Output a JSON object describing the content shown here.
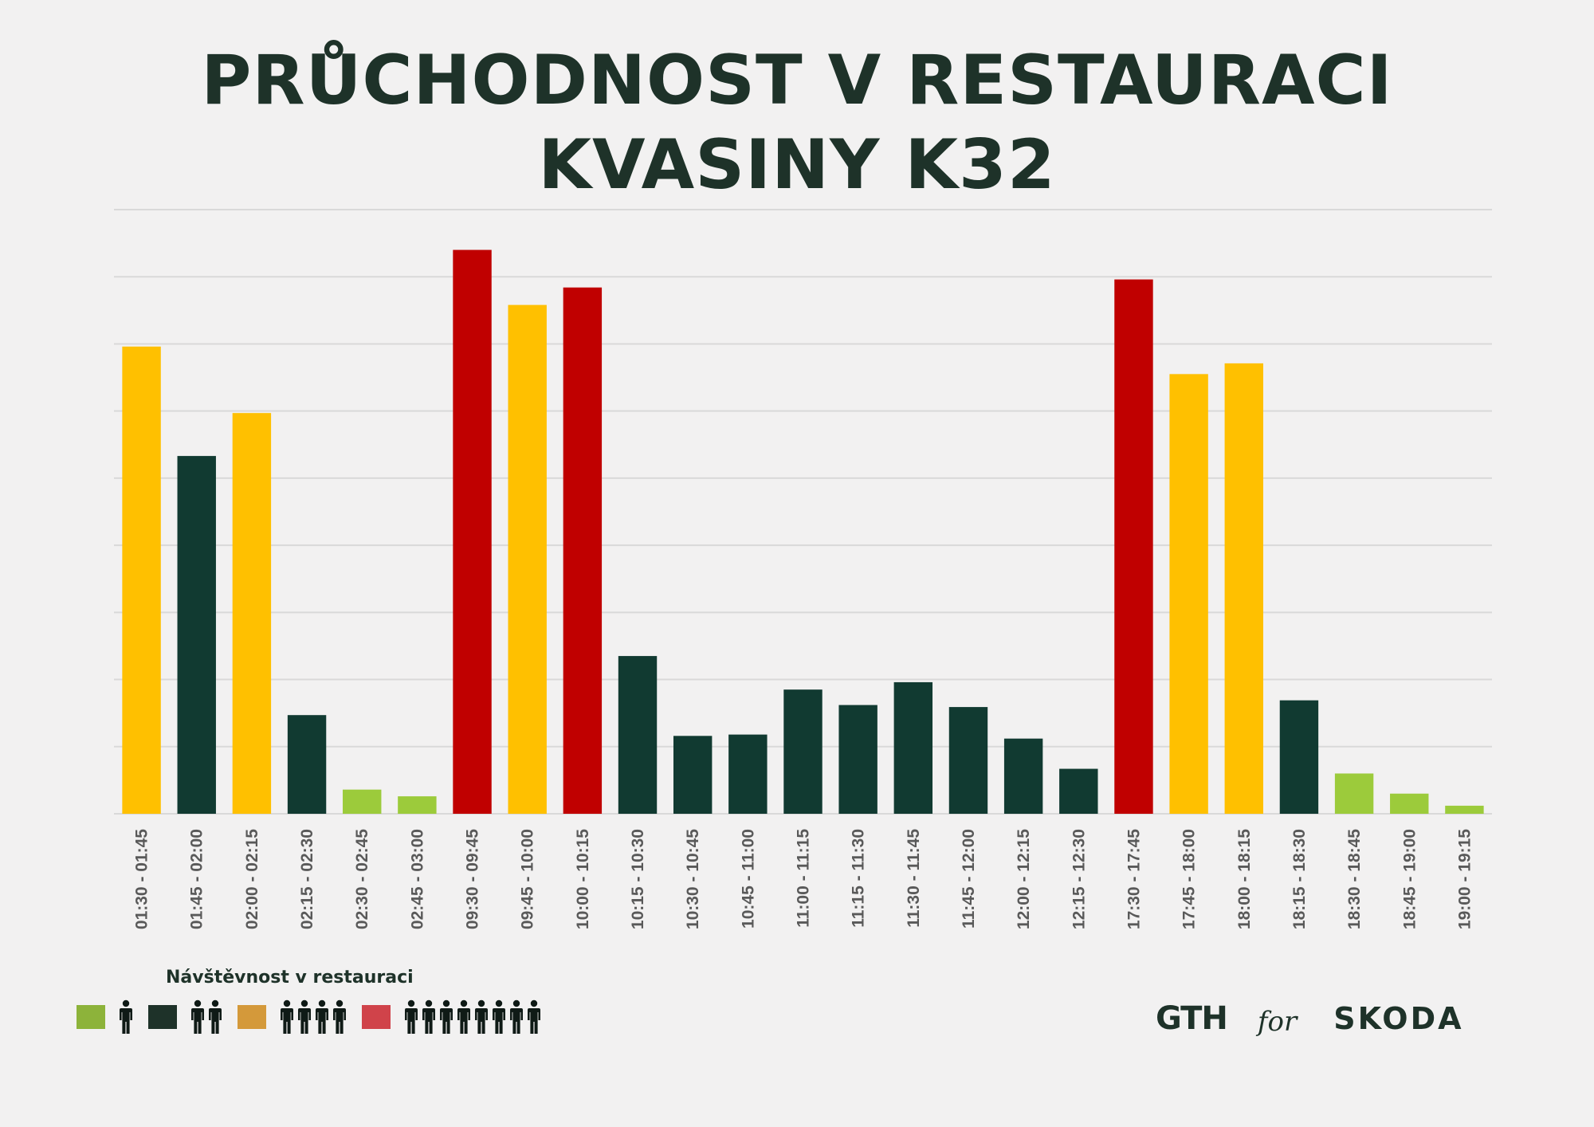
{
  "title_line1": "PRŮCHODNOST V RESTAURACI",
  "title_line2": "KVASINY K32",
  "legend": {
    "title": "Návštěvnost v restauraci",
    "items": [
      {
        "color": "#8db33a",
        "persons": 1
      },
      {
        "color": "#1e3229",
        "persons": 2
      },
      {
        "color": "#d4993a",
        "persons": 4
      },
      {
        "color": "#d0434a",
        "persons": 8
      }
    ]
  },
  "logos": {
    "gth": "GTH",
    "for": "for",
    "skoda": "SKODA"
  },
  "chart_data": {
    "type": "bar",
    "title": "PRŮCHODNOST V RESTAURACI KVASINY K32",
    "xlabel": "",
    "ylabel": "",
    "ylim": [
      0,
      9
    ],
    "grid": true,
    "legend_placement": "bottom-left",
    "categories": [
      "01:30 - 01:45",
      "01:45 - 02:00",
      "02:00 - 02:15",
      "02:15 - 02:30",
      "02:30 - 02:45",
      "02:45 - 03:00",
      "09:30 - 09:45",
      "09:45 - 10:00",
      "10:00 - 10:15",
      "10:15 - 10:30",
      "10:30 - 10:45",
      "10:45 - 11:00",
      "11:00 - 11:15",
      "11:15 - 11:30",
      "11:30 - 11:45",
      "11:45 - 12:00",
      "12:00 - 12:15",
      "12:15 - 12:30",
      "17:30 - 17:45",
      "17:45 - 18:00",
      "18:00 - 18:15",
      "18:15 - 18:30",
      "18:30 - 18:45",
      "18:45 - 19:00",
      "19:00 - 19:15"
    ],
    "values": [
      6.96,
      5.33,
      5.97,
      1.47,
      0.36,
      0.26,
      8.4,
      7.58,
      7.84,
      2.35,
      1.16,
      1.18,
      1.85,
      1.62,
      1.96,
      1.59,
      1.12,
      0.67,
      7.96,
      6.55,
      6.71,
      1.69,
      0.6,
      0.3,
      0.12
    ],
    "levels": [
      "yellow",
      "dark",
      "yellow",
      "dark",
      "green",
      "green",
      "red",
      "yellow",
      "red",
      "dark",
      "dark",
      "dark",
      "dark",
      "dark",
      "dark",
      "dark",
      "dark",
      "dark",
      "red",
      "yellow",
      "yellow",
      "dark",
      "green",
      "green",
      "green"
    ],
    "colors": {
      "green": "#9ccb3b",
      "dark": "#113a31",
      "yellow": "#ffc000",
      "red": "#c00000"
    }
  }
}
